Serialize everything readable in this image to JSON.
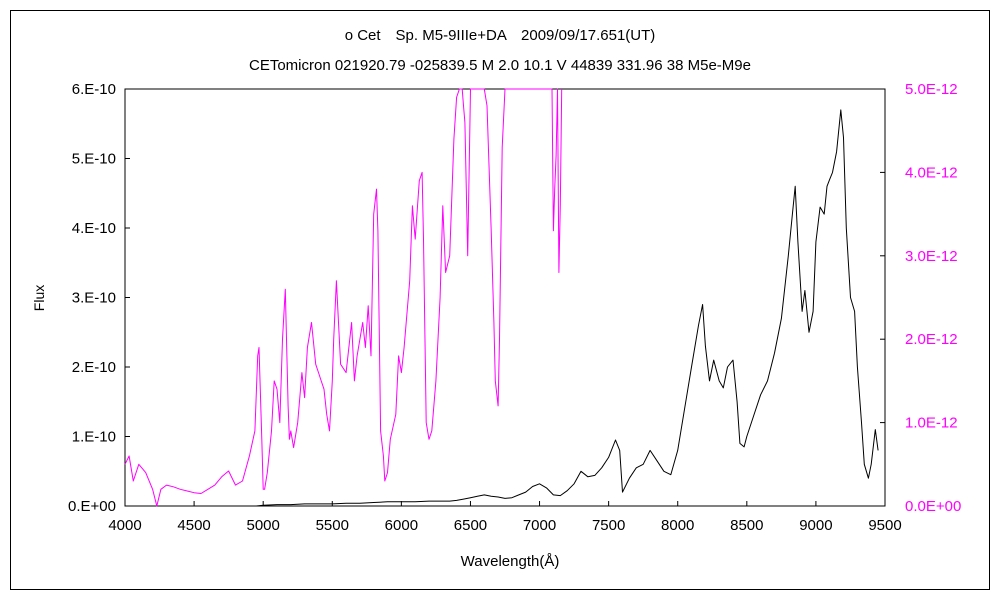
{
  "chart_data": {
    "type": "line",
    "title": "o Cet　Sp. M5-9IIIe+DA　2009/09/17.651(UT)",
    "subtitle": "CETomicron 021920.79 -025839.5 M 2.0 10.1 V 44839 331.96 38 M5e-M9e",
    "xlabel": "Wavelength(Å)",
    "ylabel": "Flux",
    "xlim": [
      4000,
      9500
    ],
    "ylim": [
      0,
      6e-10
    ],
    "y2lim": [
      0,
      5e-12
    ],
    "grid": false,
    "legend": "none",
    "x_ticks": [
      4000,
      4500,
      5000,
      5500,
      6000,
      6500,
      7000,
      7500,
      8000,
      8500,
      9000,
      9500
    ],
    "x_tick_labels": [
      "4000",
      "4500",
      "5000",
      "5500",
      "6000",
      "6500",
      "7000",
      "7500",
      "8000",
      "8500",
      "9000",
      "9500"
    ],
    "y_ticks": [
      0,
      1e-10,
      2e-10,
      3e-10,
      4e-10,
      5e-10,
      6e-10
    ],
    "y_tick_labels": [
      "0.E+00",
      "1.E-10",
      "2.E-10",
      "3.E-10",
      "4.E-10",
      "5.E-10",
      "6.E-10"
    ],
    "y2_ticks": [
      0,
      1e-12,
      2e-12,
      3e-12,
      4e-12,
      5e-12
    ],
    "y2_tick_labels": [
      "0.0E+00",
      "1.0E-12",
      "2.0E-12",
      "3.0E-12",
      "4.0E-12",
      "5.0E-12"
    ],
    "colors": {
      "primary": "#000000",
      "secondary": "#ff00ff"
    },
    "series": [
      {
        "axis": "left",
        "color": "#000000",
        "x": [
          4950,
          5000,
          5100,
          5200,
          5300,
          5400,
          5500,
          5600,
          5700,
          5800,
          5900,
          6000,
          6100,
          6200,
          6300,
          6350,
          6400,
          6450,
          6500,
          6550,
          6600,
          6650,
          6700,
          6750,
          6800,
          6850,
          6900,
          6950,
          7000,
          7050,
          7100,
          7150,
          7200,
          7250,
          7300,
          7350,
          7400,
          7450,
          7500,
          7550,
          7580,
          7600,
          7650,
          7700,
          7750,
          7800,
          7850,
          7900,
          7950,
          8000,
          8050,
          8100,
          8150,
          8180,
          8200,
          8230,
          8260,
          8300,
          8330,
          8360,
          8400,
          8430,
          8450,
          8480,
          8500,
          8550,
          8600,
          8650,
          8700,
          8750,
          8800,
          8830,
          8850,
          8870,
          8900,
          8920,
          8950,
          8980,
          9000,
          9030,
          9060,
          9080,
          9100,
          9120,
          9150,
          9180,
          9200,
          9220,
          9250,
          9280,
          9300,
          9330,
          9350,
          9380,
          9400,
          9430,
          9450
        ],
        "y": [
          0,
          1e-12,
          2e-12,
          2e-12,
          3e-12,
          3e-12,
          3e-12,
          4e-12,
          4e-12,
          5e-12,
          6e-12,
          6e-12,
          6e-12,
          7e-12,
          7e-12,
          7e-12,
          8e-12,
          1e-11,
          1.2e-11,
          1.4e-11,
          1.6e-11,
          1.4e-11,
          1.3e-11,
          1.1e-11,
          1.2e-11,
          1.6e-11,
          2e-11,
          2.8e-11,
          3.2e-11,
          2.6e-11,
          1.6e-11,
          1.5e-11,
          2.2e-11,
          3.2e-11,
          5e-11,
          4.2e-11,
          4.4e-11,
          5.5e-11,
          7e-11,
          9.5e-11,
          8e-11,
          2e-11,
          4e-11,
          5.5e-11,
          6e-11,
          8e-11,
          6.5e-11,
          5e-11,
          4.5e-11,
          8e-11,
          1.4e-10,
          2e-10,
          2.6e-10,
          2.9e-10,
          2.3e-10,
          1.8e-10,
          2.1e-10,
          1.8e-10,
          1.7e-10,
          2e-10,
          2.1e-10,
          1.5e-10,
          9e-11,
          8.5e-11,
          1e-10,
          1.3e-10,
          1.6e-10,
          1.8e-10,
          2.2e-10,
          2.7e-10,
          3.6e-10,
          4.2e-10,
          4.6e-10,
          3.8e-10,
          2.8e-10,
          3.1e-10,
          2.5e-10,
          2.8e-10,
          3.8e-10,
          4.3e-10,
          4.2e-10,
          4.6e-10,
          4.7e-10,
          4.8e-10,
          5.1e-10,
          5.7e-10,
          5.3e-10,
          4e-10,
          3e-10,
          2.8e-10,
          2e-10,
          1.2e-10,
          6e-11,
          4e-11,
          6e-11,
          1.1e-10,
          8e-11
        ]
      },
      {
        "axis": "right",
        "color": "#ff00ff",
        "x": [
          4000,
          4030,
          4060,
          4100,
          4150,
          4200,
          4230,
          4260,
          4300,
          4350,
          4400,
          4450,
          4500,
          4550,
          4600,
          4650,
          4700,
          4750,
          4800,
          4850,
          4900,
          4940,
          4960,
          4970,
          4990,
          5000,
          5010,
          5030,
          5060,
          5080,
          5100,
          5120,
          5140,
          5160,
          5180,
          5190,
          5200,
          5220,
          5250,
          5280,
          5300,
          5320,
          5350,
          5380,
          5400,
          5420,
          5440,
          5460,
          5480,
          5500,
          5510,
          5530,
          5560,
          5600,
          5640,
          5660,
          5680,
          5700,
          5720,
          5740,
          5760,
          5780,
          5800,
          5820,
          5830,
          5850,
          5870,
          5880,
          5900,
          5920,
          5960,
          5980,
          6000,
          6020,
          6050,
          6060,
          6080,
          6100,
          6130,
          6150,
          6160,
          6180,
          6200,
          6220,
          6250,
          6280,
          6300,
          6320,
          6350,
          6380,
          6400,
          6420,
          6440,
          6450,
          6460,
          6480,
          6500,
          6520,
          6550,
          6580,
          6600,
          6620,
          6650,
          6670,
          6680,
          6700,
          6710,
          6730,
          6750,
          6770,
          6800,
          6850,
          6900,
          6950,
          7000,
          7050,
          7080,
          7090,
          7100,
          7110,
          7120,
          7130,
          7140,
          7150,
          7160
        ],
        "y": [
          5e-13,
          6e-13,
          3e-13,
          5e-13,
          4e-13,
          2e-13,
          0,
          2e-13,
          2.5e-13,
          2.3e-13,
          2e-13,
          1.8e-13,
          1.6e-13,
          1.5e-13,
          2e-13,
          2.5e-13,
          3.5e-13,
          4.2e-13,
          2.5e-13,
          3e-13,
          6e-13,
          9e-13,
          1.8e-12,
          1.9e-12,
          8e-13,
          2e-13,
          2e-13,
          4e-13,
          9e-13,
          1.5e-12,
          1.4e-12,
          1e-12,
          2e-12,
          2.6e-12,
          1.2e-12,
          8e-13,
          9e-13,
          7e-13,
          1e-12,
          1.6e-12,
          1.3e-12,
          1.9e-12,
          2.2e-12,
          1.7e-12,
          1.6e-12,
          1.5e-12,
          1.4e-12,
          1.1e-12,
          9e-13,
          1.5e-12,
          2e-12,
          2.7e-12,
          1.7e-12,
          1.6e-12,
          2.2e-12,
          1.5e-12,
          1.8e-12,
          2e-12,
          2.2e-12,
          1.9e-12,
          2.4e-12,
          1.8e-12,
          3.5e-12,
          3.8e-12,
          3.3e-12,
          9e-13,
          6e-13,
          3e-13,
          4e-13,
          8e-13,
          1.1e-12,
          1.8e-12,
          1.6e-12,
          1.9e-12,
          2.5e-12,
          2.7e-12,
          3.6e-12,
          3.2e-12,
          3.9e-12,
          4e-12,
          3.2e-12,
          1e-12,
          8e-13,
          9e-13,
          1.5e-12,
          2.5e-12,
          3.6e-12,
          2.8e-12,
          3e-12,
          4.4e-12,
          4.9e-12,
          5e-12,
          5e-12,
          4.8e-12,
          4.6e-12,
          3e-12,
          5e-12,
          5e-12,
          5e-12,
          5e-12,
          5e-12,
          4.8e-12,
          3.3e-12,
          2.2e-12,
          1.5e-12,
          1.2e-12,
          2e-12,
          4.3e-12,
          5e-12,
          5e-12,
          5e-12,
          5e-12,
          5e-12,
          5e-12,
          5e-12,
          5e-12,
          5e-12,
          5e-12,
          3.3e-12,
          3.8e-12,
          4.2e-12,
          5e-12,
          2.8e-12,
          3.6e-12,
          5e-12
        ]
      }
    ]
  }
}
